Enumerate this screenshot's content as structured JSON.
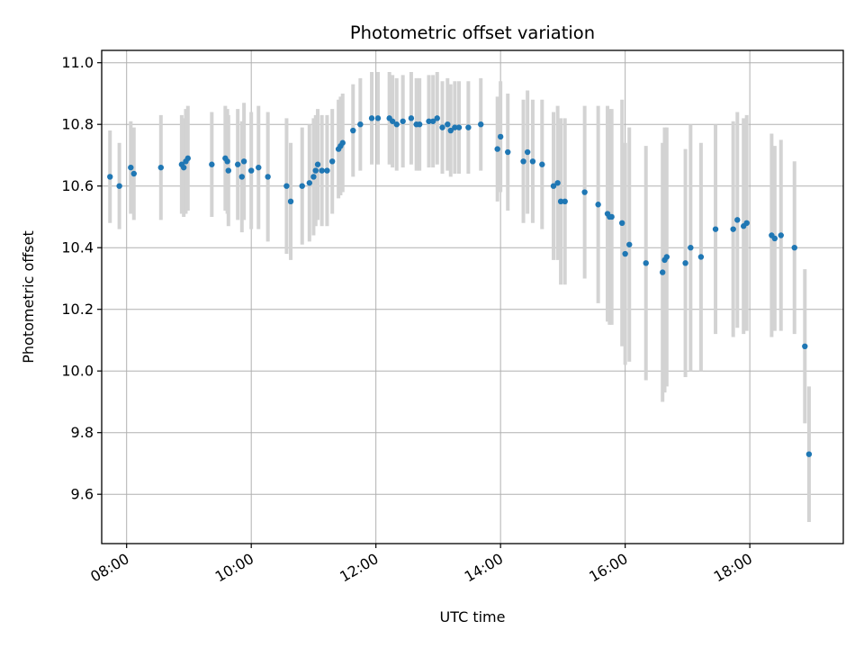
{
  "chart_data": {
    "type": "scatter",
    "title": "Photometric offset variation",
    "xlabel": "UTC time",
    "ylabel": "Photometric offset",
    "x_unit": "hours",
    "xlim": [
      "07:36",
      "19:30"
    ],
    "ylim": [
      9.44,
      11.04
    ],
    "x_ticks": [
      "08:00",
      "10:00",
      "12:00",
      "14:00",
      "16:00",
      "18:00"
    ],
    "y_ticks": [
      "9.6",
      "9.8",
      "10.0",
      "10.2",
      "10.4",
      "10.6",
      "10.8",
      "11.0"
    ],
    "grid": true,
    "colors": {
      "point": "#1f77b4",
      "errorbar": "#d3d3d3",
      "grid": "#b0b0b0"
    },
    "series": [
      {
        "x": [
          "07:44",
          "07:53",
          "08:04",
          "08:07",
          "08:33",
          "08:53",
          "08:55",
          "08:57",
          "08:59",
          "09:22",
          "09:35",
          "09:37",
          "09:38",
          "09:47",
          "09:51",
          "09:53",
          "10:00",
          "10:07",
          "10:16",
          "10:34",
          "10:38",
          "10:49",
          "10:56",
          "11:00",
          "11:02",
          "11:04",
          "11:08",
          "11:13",
          "11:18",
          "11:24",
          "11:26",
          "11:28",
          "11:38",
          "11:45",
          "11:56",
          "12:02",
          "12:13",
          "12:16",
          "12:20",
          "12:26",
          "12:34",
          "12:39",
          "12:42",
          "12:51",
          "12:55",
          "12:59",
          "13:04",
          "13:09",
          "13:12",
          "13:16",
          "13:20",
          "13:29",
          "13:41",
          "13:57",
          "14:00",
          "14:07",
          "14:22",
          "14:26",
          "14:31",
          "14:40",
          "14:51",
          "14:55",
          "14:58",
          "15:02",
          "15:21",
          "15:34",
          "15:43",
          "15:45",
          "15:47",
          "15:57",
          "16:00",
          "16:04",
          "16:20",
          "16:36",
          "16:38",
          "16:40",
          "16:58",
          "17:03",
          "17:13",
          "17:27",
          "17:44",
          "17:48",
          "17:54",
          "17:57",
          "18:21",
          "18:24",
          "18:30",
          "18:43",
          "18:53",
          "18:57"
        ],
        "y": [
          10.63,
          10.6,
          10.66,
          10.64,
          10.66,
          10.67,
          10.66,
          10.68,
          10.69,
          10.67,
          10.69,
          10.68,
          10.65,
          10.67,
          10.63,
          10.68,
          10.65,
          10.66,
          10.63,
          10.6,
          10.55,
          10.6,
          10.61,
          10.63,
          10.65,
          10.67,
          10.65,
          10.65,
          10.68,
          10.72,
          10.73,
          10.74,
          10.78,
          10.8,
          10.82,
          10.82,
          10.82,
          10.81,
          10.8,
          10.81,
          10.82,
          10.8,
          10.8,
          10.81,
          10.81,
          10.82,
          10.79,
          10.8,
          10.78,
          10.79,
          10.79,
          10.79,
          10.8,
          10.72,
          10.76,
          10.71,
          10.68,
          10.71,
          10.68,
          10.67,
          10.6,
          10.61,
          10.55,
          10.55,
          10.58,
          10.54,
          10.51,
          10.5,
          10.5,
          10.48,
          10.38,
          10.41,
          10.35,
          10.32,
          10.36,
          10.37,
          10.35,
          10.4,
          10.37,
          10.46,
          10.46,
          10.49,
          10.47,
          10.48,
          10.44,
          10.43,
          10.44,
          10.4,
          10.08,
          9.73
        ],
        "yerr": [
          0.15,
          0.14,
          0.15,
          0.15,
          0.17,
          0.16,
          0.16,
          0.17,
          0.17,
          0.17,
          0.17,
          0.17,
          0.18,
          0.18,
          0.18,
          0.19,
          0.19,
          0.2,
          0.21,
          0.22,
          0.19,
          0.19,
          0.19,
          0.19,
          0.18,
          0.18,
          0.18,
          0.18,
          0.17,
          0.16,
          0.16,
          0.16,
          0.15,
          0.15,
          0.15,
          0.15,
          0.15,
          0.15,
          0.15,
          0.15,
          0.15,
          0.15,
          0.15,
          0.15,
          0.15,
          0.15,
          0.15,
          0.15,
          0.15,
          0.15,
          0.15,
          0.15,
          0.15,
          0.17,
          0.18,
          0.19,
          0.2,
          0.2,
          0.2,
          0.21,
          0.24,
          0.25,
          0.27,
          0.27,
          0.28,
          0.32,
          0.35,
          0.35,
          0.35,
          0.4,
          0.36,
          0.38,
          0.38,
          0.42,
          0.43,
          0.42,
          0.37,
          0.4,
          0.37,
          0.34,
          0.35,
          0.35,
          0.35,
          0.35,
          0.33,
          0.3,
          0.31,
          0.28,
          0.25,
          0.22
        ]
      }
    ]
  }
}
